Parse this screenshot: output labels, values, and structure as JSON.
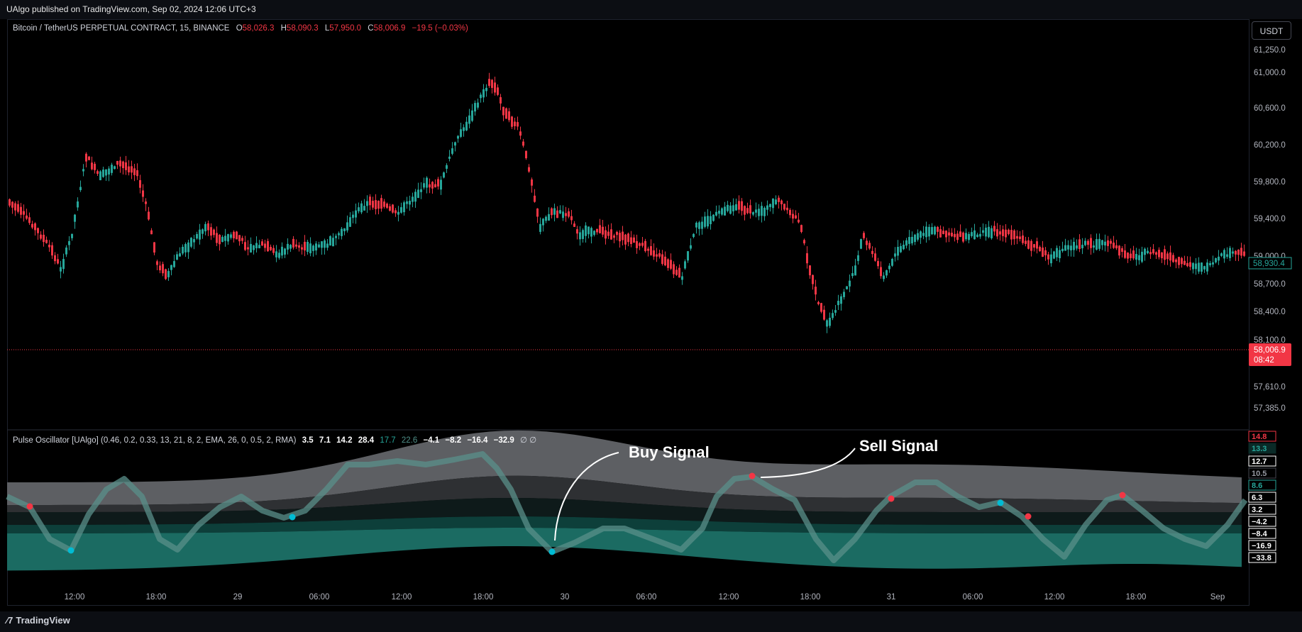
{
  "publisher": "UAlgo published on TradingView.com, Sep 02, 2024 12:06 UTC+3",
  "symbol": {
    "name": "Bitcoin / TetherUS PERPETUAL CONTRACT, 15, BINANCE",
    "o_label": "O",
    "o": "58,026.3",
    "h_label": "H",
    "h": "58,090.3",
    "l_label": "L",
    "l": "57,950.0",
    "c_label": "C",
    "c": "58,006.9",
    "change": "−19.5 (−0.03%)"
  },
  "currency_button": "USDT",
  "indicator": {
    "name": "Pulse Oscillator [UAlgo] (0.46, 0.2, 0.33, 13, 21, 8, 2, EMA, 26, 0, 0.5, 2, RMA)",
    "values": [
      "3.5",
      "7.1",
      "14.2",
      "28.4"
    ],
    "teal_values": [
      "17.7",
      "22.6"
    ],
    "neg_values": [
      "−4.1",
      "−8.2",
      "−16.4",
      "−32.9"
    ],
    "tail": "∅  ∅"
  },
  "price_axis": [
    "61,250.0",
    "61,000.0",
    "60,600.0",
    "60,200.0",
    "59,800.0",
    "59,400.0",
    "59,000.0",
    "58,700.0",
    "58,400.0",
    "58,100.0",
    "57,610.0",
    "57,385.0"
  ],
  "price_current": {
    "price": "58,006.9",
    "timer": "08:42",
    "color": "#f23645"
  },
  "price_marker_teal": "58,930.4",
  "osc_axis": [
    {
      "text": "14.8",
      "style": "red"
    },
    {
      "text": "13.3",
      "style": "teal"
    },
    {
      "text": "12.7",
      "style": "white"
    },
    {
      "text": "10.5",
      "style": "gray"
    },
    {
      "text": "8.6",
      "style": "tealbox"
    },
    {
      "text": "6.3",
      "style": "white"
    },
    {
      "text": "3.2",
      "style": "white"
    },
    {
      "text": "−4.2",
      "style": "white"
    },
    {
      "text": "−8.4",
      "style": "white"
    },
    {
      "text": "−16.9",
      "style": "white"
    },
    {
      "text": "−33.8",
      "style": "white"
    }
  ],
  "time_axis": [
    "12:00",
    "18:00",
    "29",
    "06:00",
    "12:00",
    "18:00",
    "30",
    "06:00",
    "12:00",
    "18:00",
    "31",
    "06:00",
    "12:00",
    "18:00",
    "Sep"
  ],
  "annotations": {
    "buy": "Buy Signal",
    "sell": "Sell Signal"
  },
  "brand": "TradingView",
  "colors": {
    "up": "#26a69a",
    "down": "#f23645",
    "signal_buy": "#00bcd4",
    "signal_sell": "#f23645"
  }
}
